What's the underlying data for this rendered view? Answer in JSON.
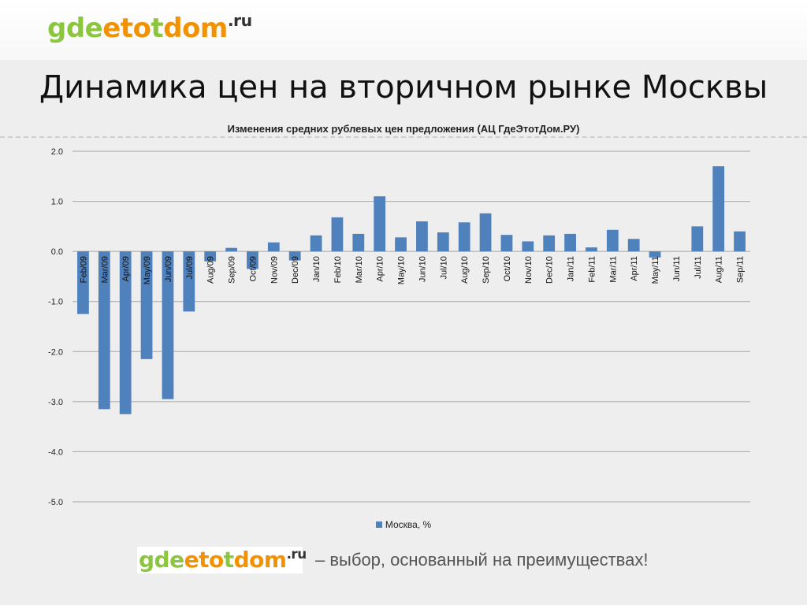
{
  "header": {
    "logo": {
      "part1": "gde",
      "part2": "eto",
      "part3": "t",
      "part4": "dom",
      "suffix": ".ru"
    },
    "heading": "Динамика цен на вторичном рынке Москвы"
  },
  "footer": {
    "logo": {
      "part1": "gde",
      "part2": "eto",
      "part3": "t",
      "part4": "dom",
      "suffix": ".ru"
    },
    "slogan": "– выбор, основанный на преимуществах!"
  },
  "colors": {
    "bar": "#4f81bd",
    "grid": "#a6a6a6",
    "logo_green": "#8cc63f",
    "logo_orange": "#f39200"
  },
  "chart_data": {
    "type": "bar",
    "title": "Изменения средних рублевых цен предложения (АЦ ГдеЭтотДом.РУ)",
    "categories": [
      "Feb/09",
      "Mar/09",
      "Apr/09",
      "May/09",
      "Jun/09",
      "Jul/09",
      "Aug/09",
      "Sep/09",
      "Oct/09",
      "Nov/09",
      "Dec/09",
      "Jan/10",
      "Feb/10",
      "Mar/10",
      "Apr/10",
      "May/10",
      "Jun/10",
      "Jul/10",
      "Aug/10",
      "Sep/10",
      "Oct/10",
      "Nov/10",
      "Dec/10",
      "Jan/11",
      "Feb/11",
      "Mar/11",
      "Apr/11",
      "May/11",
      "Jun/11",
      "Jul/11",
      "Aug/11",
      "Sep/11"
    ],
    "series": [
      {
        "name": "Москва, %",
        "values": [
          -1.25,
          -3.15,
          -3.25,
          -2.15,
          -2.95,
          -1.2,
          -0.2,
          0.07,
          -0.35,
          0.18,
          -0.18,
          0.32,
          0.68,
          0.35,
          1.1,
          0.28,
          0.6,
          0.38,
          0.58,
          0.76,
          0.33,
          0.2,
          0.32,
          0.35,
          0.08,
          0.43,
          0.25,
          -0.12,
          0.0,
          0.5,
          1.7,
          0.4
        ]
      }
    ],
    "yticks": [
      "2.0",
      "1.0",
      "0.0",
      "-1.0",
      "-2.0",
      "-3.0",
      "-4.0",
      "-5.0"
    ],
    "ylim": [
      -5,
      2
    ],
    "grid": true,
    "legend_position": "bottom"
  }
}
